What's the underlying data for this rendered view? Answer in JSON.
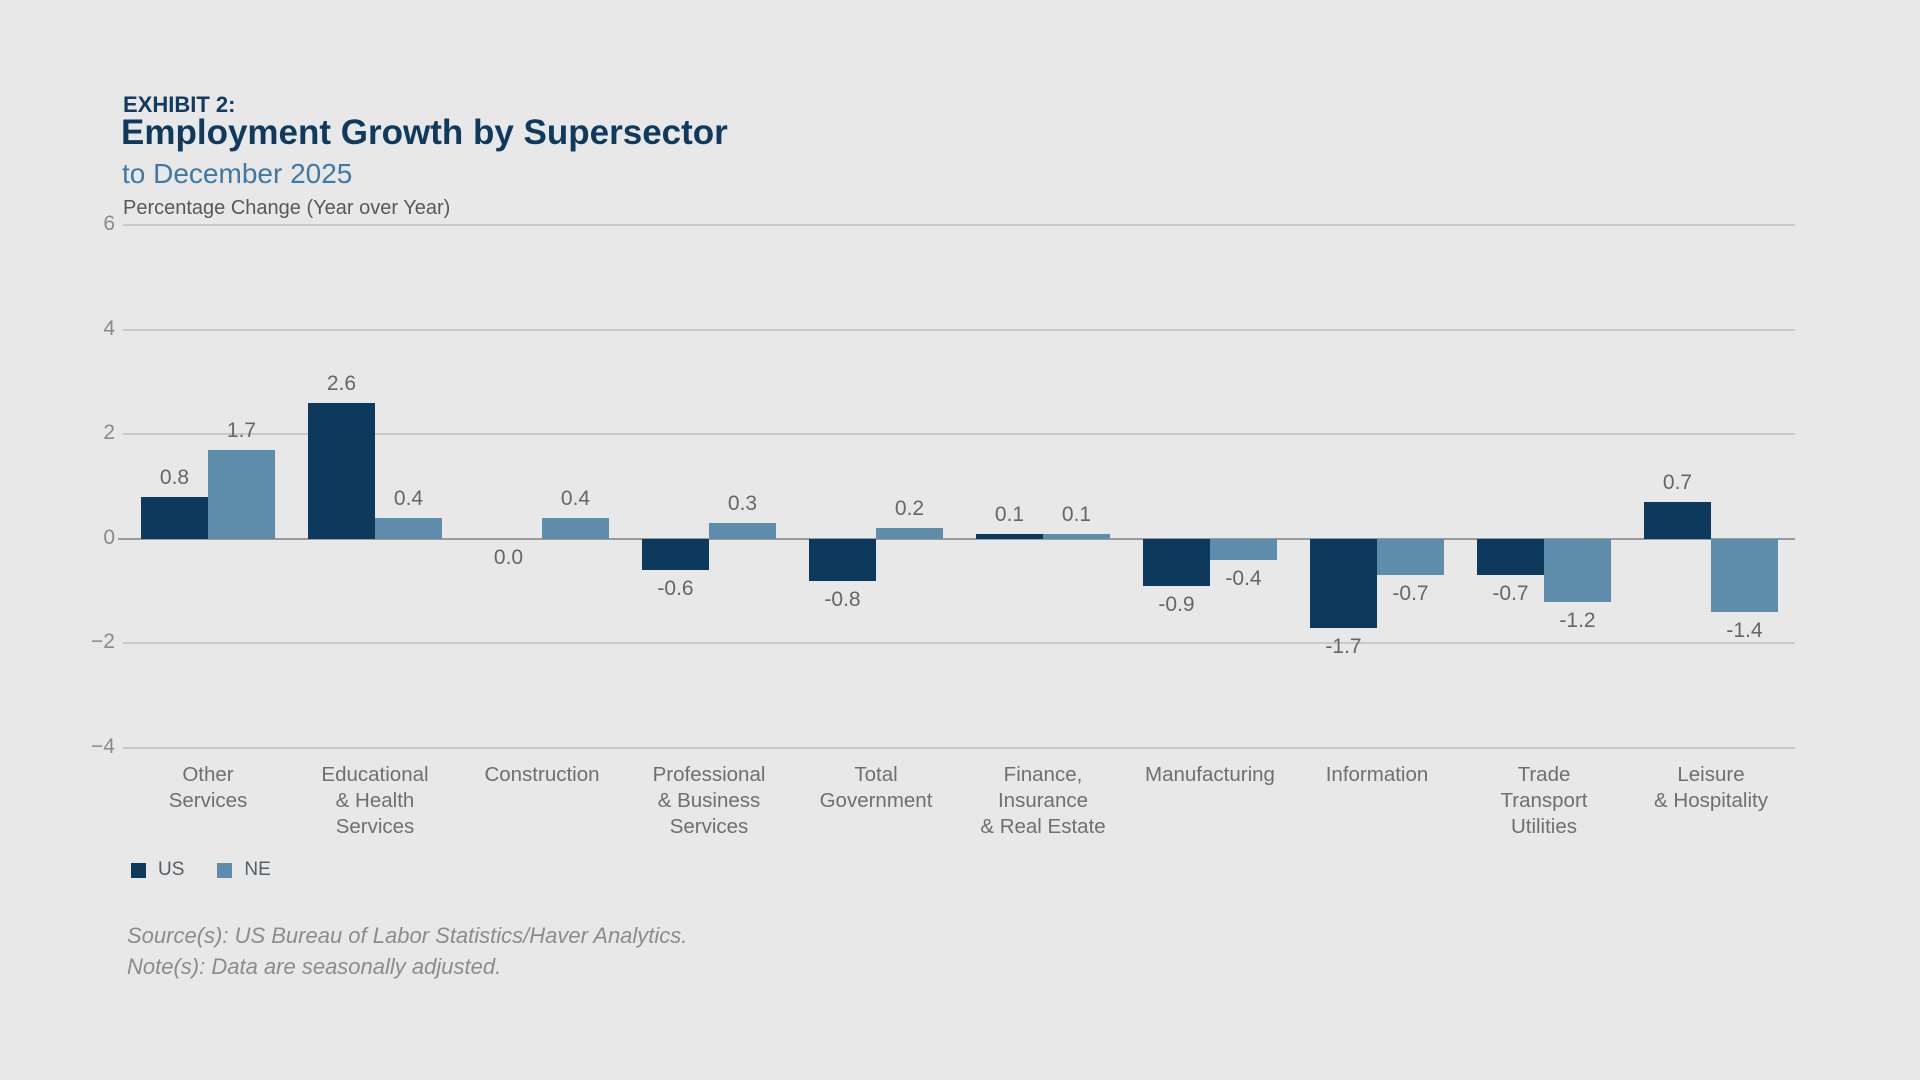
{
  "header": {
    "exhibit_label": "EXHIBIT 2:",
    "title": "Employment Growth by Supersector",
    "subtitle": "to December 2025",
    "axis_note": "Percentage Change (Year over Year)"
  },
  "chart_data": {
    "type": "bar",
    "title": "Employment Growth by Supersector to December 2025",
    "ylabel": "Percentage Change (Year over Year)",
    "xlabel": "",
    "ylim": [
      -4,
      6
    ],
    "yticks": [
      6,
      4,
      2,
      0,
      -2,
      -4
    ],
    "ytick_labels": [
      "6",
      "4",
      "2",
      "0",
      "−2",
      "−4"
    ],
    "grid": true,
    "legend_position": "bottom-left",
    "categories": [
      [
        "Other",
        "Services"
      ],
      [
        "Educational",
        "& Health",
        "Services"
      ],
      [
        "Construction"
      ],
      [
        "Professional",
        "& Business",
        "Services"
      ],
      [
        "Total",
        "Government"
      ],
      [
        "Finance,",
        "Insurance",
        "& Real Estate"
      ],
      [
        "Manufacturing"
      ],
      [
        "Information"
      ],
      [
        "Trade",
        "Transport",
        "Utilities"
      ],
      [
        "Leisure",
        "& Hospitality"
      ]
    ],
    "series": [
      {
        "name": "US",
        "color": "#0d3a5c",
        "values": [
          0.8,
          2.6,
          0.0,
          -0.6,
          -0.8,
          0.1,
          -0.9,
          -1.7,
          -0.7,
          0.7
        ]
      },
      {
        "name": "NE",
        "color": "#5d8dab",
        "values": [
          1.7,
          0.4,
          0.4,
          0.3,
          0.2,
          0.1,
          -0.4,
          -0.7,
          -1.2,
          -1.4
        ]
      }
    ]
  },
  "legend": {
    "items": [
      {
        "label": "US",
        "color": "#0d3a5c"
      },
      {
        "label": "NE",
        "color": "#5d8dab"
      }
    ]
  },
  "footer": {
    "source": "Source(s): US Bureau of Labor Statistics/Haver Analytics.",
    "note": "Note(s): Data are seasonally adjusted."
  },
  "colors": {
    "background": "#e8e8e8",
    "us_bar": "#0d3a5c",
    "ne_bar": "#5d8dab",
    "gridline": "#c9c9c7",
    "zero_line": "#9b9b9b",
    "title_navy": "#0f3a5e",
    "subtitle_blue": "#4279a3",
    "label_gray": "#666666"
  }
}
